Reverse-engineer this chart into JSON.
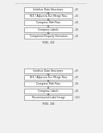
{
  "background_color": "#f0f0f0",
  "fig15": {
    "title": "FIG. 15",
    "boxes": [
      "Initialize Data Structures",
      "RLE / Adjacent-Run Merge Pass",
      "Compress Path Pass",
      "Compress Labels",
      "Component-Property Extraction"
    ],
    "labels": [
      "80",
      "82",
      "84",
      "86",
      "88"
    ]
  },
  "fig16": {
    "title": "FIG. 16",
    "boxes": [
      "Initialize Data Structures",
      "RLE / Adjacent-Run Merge Pass",
      "Compress Path Pass",
      "Compress Labels",
      "Reconstructed Label Image"
    ],
    "labels": [
      "80",
      "82",
      "84",
      "86",
      "102"
    ]
  },
  "header_text": "Patent Application Publication   Apr. 28, 2016  Sheet 11 of 13   US 2016/0117834 A1",
  "box_facecolor": "#ffffff",
  "box_edgecolor": "#777777",
  "arrow_color": "#555555",
  "text_color": "#222222",
  "label_color": "#555555",
  "title_color": "#222222"
}
